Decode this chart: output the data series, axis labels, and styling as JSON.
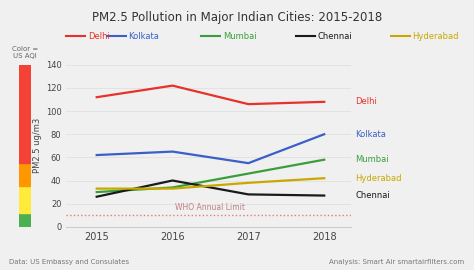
{
  "title": "PM2.5 Pollution in Major Indian Cities: 2015-2018",
  "years": [
    2015,
    2016,
    2017,
    2018
  ],
  "series": {
    "Delhi": {
      "values": [
        112,
        122,
        106,
        108
      ],
      "color": "#e8312a"
    },
    "Kolkata": {
      "values": [
        62,
        65,
        55,
        80
      ],
      "color": "#3a5fc8"
    },
    "Mumbai": {
      "values": [
        30,
        34,
        46,
        58
      ],
      "color": "#3a9e3a"
    },
    "Chennai": {
      "values": [
        26,
        40,
        28,
        27
      ],
      "color": "#1a1a1a"
    },
    "Hyderabad": {
      "values": [
        33,
        33,
        38,
        42
      ],
      "color": "#c8a800"
    }
  },
  "ylabel": "PM2.5 ug/m3",
  "ylim": [
    0,
    140
  ],
  "yticks": [
    0,
    20,
    40,
    60,
    80,
    100,
    120,
    140
  ],
  "who_limit": 10,
  "who_label": "WHO Annual Limit",
  "color_bar": [
    {
      "ymin": 0,
      "ymax": 12,
      "color": "#4caf50"
    },
    {
      "ymin": 12,
      "ymax": 35,
      "color": "#ffeb3b"
    },
    {
      "ymin": 35,
      "ymax": 55,
      "color": "#ff9800"
    },
    {
      "ymin": 55,
      "ymax": 150,
      "color": "#f44336"
    }
  ],
  "color_bar_label": "Color =\nUS AQI",
  "legend_order": [
    "Delhi",
    "Kolkata",
    "Mumbai",
    "Chennai",
    "Hyderabad"
  ],
  "footnote_left": "Data: US Embassy and Consulates",
  "footnote_right": "Analysis: Smart Air smartairfilters.com",
  "bg_color": "#f0f0f0",
  "right_labels": [
    "Delhi",
    "Kolkata",
    "Mumbai",
    "Hyderabad",
    "Chennai"
  ]
}
